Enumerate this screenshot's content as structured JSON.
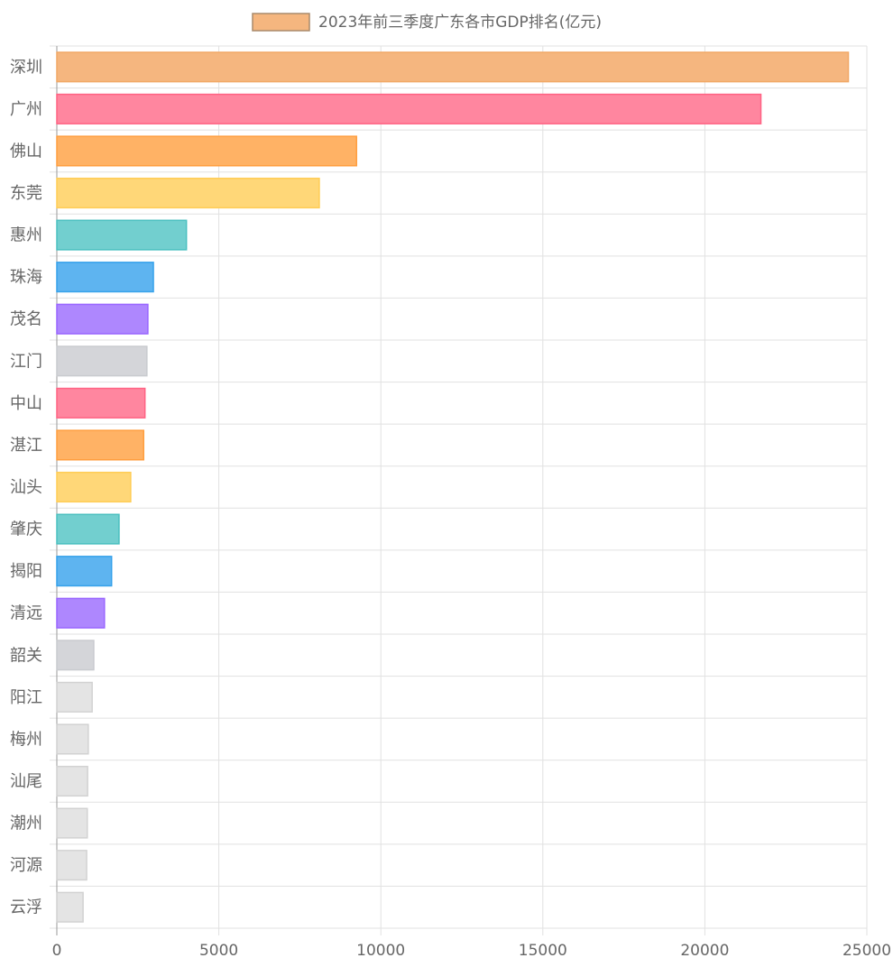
{
  "chart_data": {
    "type": "bar",
    "orientation": "horizontal",
    "title": "",
    "xlabel": "",
    "ylabel": "",
    "xlim": [
      0,
      25000
    ],
    "x_ticks": [
      0,
      5000,
      10000,
      15000,
      20000,
      25000
    ],
    "grid": true,
    "legend_position": "top-center",
    "categories": [
      "深圳",
      "广州",
      "佛山",
      "东莞",
      "惠州",
      "珠海",
      "茂名",
      "江门",
      "中山",
      "湛江",
      "汕头",
      "肇庆",
      "揭阳",
      "清远",
      "韶关",
      "阳江",
      "梅州",
      "汕尾",
      "潮州",
      "河源",
      "云浮"
    ],
    "series": [
      {
        "name": "2023年前三季度广东各市GDP排名(亿元)",
        "legend_color": "#f5b67f",
        "values": [
          24430,
          21730,
          9250,
          8100,
          4000,
          2980,
          2810,
          2780,
          2720,
          2680,
          2280,
          1920,
          1690,
          1470,
          1140,
          1090,
          970,
          950,
          940,
          920,
          810
        ],
        "colors": [
          "#f5b67f",
          "#ff869f",
          "#ffb265",
          "#ffd778",
          "#72cfcf",
          "#5eb4f0",
          "#ae87fe",
          "#d4d5d9",
          "#ff869f",
          "#ffb265",
          "#ffd778",
          "#72cfcf",
          "#5eb4f0",
          "#ae87fe",
          "#d4d5d9",
          "#e4e4e4",
          "#e4e4e4",
          "#e4e4e4",
          "#e4e4e4",
          "#e4e4e4",
          "#e4e4e4"
        ],
        "border_colors": [
          "#f1a866",
          "#ff6384",
          "#ff9f40",
          "#ffcd56",
          "#4bc0c0",
          "#36a2eb",
          "#9966ff",
          "#c9cbcf",
          "#ff6384",
          "#ff9f40",
          "#ffcd56",
          "#4bc0c0",
          "#36a2eb",
          "#9966ff",
          "#c9cbcf",
          "#d2d2d2",
          "#d2d2d2",
          "#d2d2d2",
          "#d2d2d2",
          "#d2d2d2",
          "#d2d2d2"
        ]
      }
    ]
  }
}
